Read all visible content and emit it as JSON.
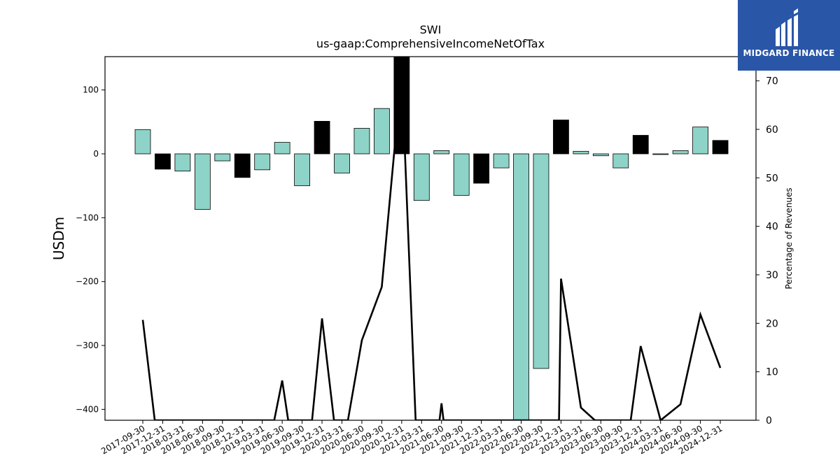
{
  "chart_data": {
    "type": "bar",
    "title": "SWI",
    "subtitle": "us-gaap:ComprehensiveIncomeNetOfTax",
    "ylabel": "USDm",
    "ylabel_right": "Percentage of Revenues",
    "ylim": [
      -417,
      152
    ],
    "ylim_right": [
      0,
      75
    ],
    "yticks": [
      100,
      0,
      -100,
      -200,
      -300,
      -400
    ],
    "yticks_right": [
      0,
      10,
      20,
      30,
      40,
      50,
      60,
      70
    ],
    "categories": [
      "2017-09-30",
      "2017-12-31",
      "2018-03-31",
      "2018-06-30",
      "2018-09-30",
      "2018-12-31",
      "2019-03-31",
      "2019-06-30",
      "2019-09-30",
      "2019-12-31",
      "2020-03-31",
      "2020-06-30",
      "2020-09-30",
      "2020-12-31",
      "2021-03-31",
      "2021-06-30",
      "2021-09-30",
      "2021-12-31",
      "2022-03-31",
      "2022-06-30",
      "2022-09-30",
      "2022-12-31",
      "2023-03-31",
      "2023-06-30",
      "2023-09-30",
      "2023-12-31",
      "2024-03-31",
      "2024-06-30",
      "2024-09-30",
      "2024-12-31"
    ],
    "series": [
      {
        "kind": "bar",
        "values": [
          38,
          -24,
          -27,
          -87,
          -11,
          -37,
          -25,
          18,
          -50,
          51,
          -30,
          40,
          71,
          152,
          -73,
          5,
          -65,
          -46,
          -22,
          -417,
          -336,
          53,
          4,
          -3,
          -22,
          29,
          -1,
          5,
          42,
          21
        ],
        "colors": [
          "#8ed3c7",
          "#000000",
          "#8ed3c7",
          "#8ed3c7",
          "#8ed3c7",
          "#000000",
          "#8ed3c7",
          "#8ed3c7",
          "#8ed3c7",
          "#000000",
          "#8ed3c7",
          "#8ed3c7",
          "#8ed3c7",
          "#000000",
          "#8ed3c7",
          "#8ed3c7",
          "#8ed3c7",
          "#000000",
          "#8ed3c7",
          "#8ed3c7",
          "#8ed3c7",
          "#000000",
          "#8ed3c7",
          "#8ed3c7",
          "#8ed3c7",
          "#000000",
          "#8ed3c7",
          "#8ed3c7",
          "#8ed3c7",
          "#000000"
        ]
      },
      {
        "kind": "line",
        "axis": "right",
        "points": [
          [
            0,
            20.7
          ],
          [
            0.6,
            0
          ],
          [
            6.6,
            0
          ],
          [
            7,
            8.2
          ],
          [
            7.3,
            0
          ],
          [
            8.5,
            0
          ],
          [
            9,
            21
          ],
          [
            9.6,
            0
          ],
          [
            10.3,
            0
          ],
          [
            11,
            16.5
          ],
          [
            12,
            27.5
          ],
          [
            13,
            72
          ],
          [
            13.7,
            0
          ],
          [
            14.9,
            0
          ],
          [
            15,
            3.5
          ],
          [
            15.1,
            0
          ],
          [
            20.9,
            0
          ],
          [
            21,
            29.2
          ],
          [
            22,
            2.6
          ],
          [
            22.7,
            0
          ],
          [
            24.5,
            0
          ],
          [
            25,
            15.3
          ],
          [
            26,
            0
          ],
          [
            27,
            3.3
          ],
          [
            28,
            21.8
          ],
          [
            29,
            10.8
          ]
        ]
      }
    ],
    "grid": false,
    "colors": {
      "teal": "#8ed3c7",
      "black": "#000000",
      "logo_bg": "#2a56a8"
    }
  },
  "logo": {
    "text": "MIDGARD FINANCE"
  }
}
